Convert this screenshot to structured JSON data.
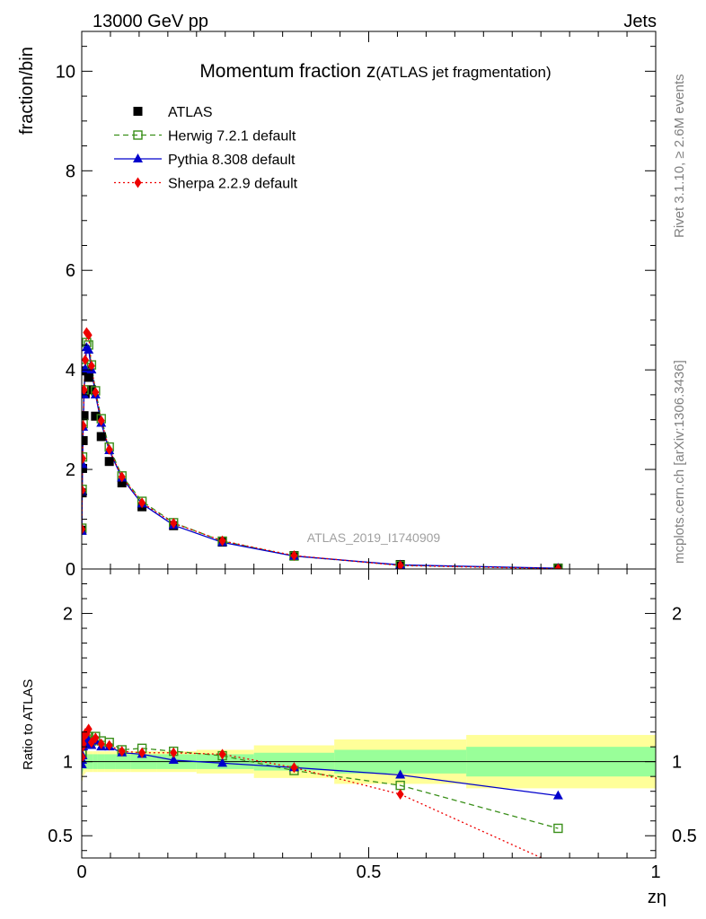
{
  "header": {
    "left": "13000 GeV pp",
    "right": "Jets"
  },
  "side_labels": {
    "rivet": "Rivet 3.1.10, ≥ 2.6M events",
    "mcplots": "mcplots.cern.ch [arXiv:1306.3436]"
  },
  "chart_data": {
    "type": "scatter",
    "title_main": "Momentum fraction z",
    "title_sub": "(ATLAS jet fragmentation)",
    "analysis_label": "ATLAS_2019_I1740909",
    "xlabel": "zη",
    "ylabel": "fraction/bin",
    "ratio_ylabel": "Ratio to ATLAS",
    "xlim": [
      0,
      1
    ],
    "ylim": [
      0,
      10.8
    ],
    "ratio_ylim": [
      0.35,
      2.3
    ],
    "x_ticks": [
      "0",
      "0.5",
      "1"
    ],
    "y_ticks": [
      "0",
      "2",
      "4",
      "6",
      "8",
      "10"
    ],
    "ratio_ticks": [
      "0.5",
      "1",
      "2"
    ],
    "x": [
      0.0003,
      0.0008,
      0.0015,
      0.0025,
      0.004,
      0.006,
      0.0085,
      0.012,
      0.017,
      0.024,
      0.034,
      0.048,
      0.07,
      0.105,
      0.16,
      0.245,
      0.37,
      0.555,
      0.83
    ],
    "series": [
      {
        "name": "ATLAS",
        "marker": "filled-square",
        "color": "#000000",
        "line": "none",
        "values": [
          0.78,
          1.53,
          2.02,
          2.58,
          3.08,
          3.52,
          3.98,
          3.85,
          3.6,
          3.07,
          2.66,
          2.16,
          1.73,
          1.25,
          0.87,
          0.54,
          0.27,
          0.09,
          0.02
        ]
      },
      {
        "name": "Herwig 7.2.1 default",
        "marker": "open-square",
        "color": "#3a8f1a",
        "line": "dashed",
        "values": [
          0.82,
          1.6,
          2.25,
          2.92,
          3.6,
          4.05,
          4.55,
          4.5,
          4.1,
          3.58,
          3.02,
          2.45,
          1.87,
          1.36,
          0.93,
          0.56,
          0.26,
          0.075,
          0.011
        ]
      },
      {
        "name": "Pythia 8.308 default",
        "marker": "filled-triangle",
        "color": "#0000cc",
        "line": "solid",
        "values": [
          0.76,
          1.55,
          2.1,
          2.85,
          3.5,
          4.02,
          4.45,
          4.4,
          4.0,
          3.5,
          2.93,
          2.38,
          1.83,
          1.31,
          0.88,
          0.535,
          0.26,
          0.082,
          0.015
        ]
      },
      {
        "name": "Sherpa 2.2.9 default",
        "marker": "filled-diamond",
        "color": "#ee0000",
        "line": "dotted",
        "values": [
          0.8,
          1.58,
          2.22,
          2.88,
          3.6,
          4.2,
          4.75,
          4.7,
          4.08,
          3.55,
          2.98,
          2.4,
          1.85,
          1.33,
          0.92,
          0.565,
          0.27,
          0.07,
          0.005
        ]
      }
    ],
    "ratio_series": [
      {
        "name": "Herwig 7.2.1 default",
        "values": [
          1.05,
          1.05,
          1.11,
          1.13,
          1.17,
          1.15,
          1.14,
          1.17,
          1.14,
          1.17,
          1.14,
          1.13,
          1.08,
          1.09,
          1.07,
          1.04,
          0.94,
          0.84,
          0.55
        ]
      },
      {
        "name": "Pythia 8.308 default",
        "values": [
          0.98,
          1.01,
          1.04,
          1.1,
          1.14,
          1.14,
          1.12,
          1.14,
          1.11,
          1.14,
          1.1,
          1.1,
          1.06,
          1.05,
          1.01,
          0.99,
          0.96,
          0.91,
          0.77
        ]
      },
      {
        "name": "Sherpa 2.2.9 default",
        "values": [
          1.03,
          1.03,
          1.1,
          1.12,
          1.17,
          1.19,
          1.19,
          1.22,
          1.13,
          1.16,
          1.12,
          1.11,
          1.07,
          1.06,
          1.06,
          1.05,
          0.96,
          0.78,
          0.3
        ]
      }
    ],
    "ratio_bands": {
      "edges": [
        0,
        0.0006,
        0.001,
        0.002,
        0.003,
        0.005,
        0.007,
        0.01,
        0.014,
        0.02,
        0.028,
        0.04,
        0.058,
        0.085,
        0.13,
        0.2,
        0.3,
        0.44,
        0.67,
        1.0
      ],
      "inner": [
        0.09,
        0.08,
        0.07,
        0.06,
        0.05,
        0.05,
        0.05,
        0.05,
        0.05,
        0.05,
        0.05,
        0.05,
        0.05,
        0.05,
        0.05,
        0.05,
        0.06,
        0.08,
        0.1
      ],
      "outer": [
        0.14,
        0.13,
        0.12,
        0.1,
        0.09,
        0.08,
        0.07,
        0.07,
        0.07,
        0.07,
        0.07,
        0.07,
        0.07,
        0.07,
        0.07,
        0.08,
        0.11,
        0.15,
        0.18
      ],
      "inner_color": "#99ff99",
      "outer_color": "#ffff99"
    }
  }
}
